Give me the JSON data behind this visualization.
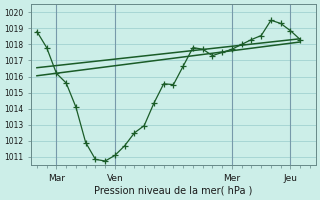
{
  "xlabel": "Pression niveau de la mer( hPa )",
  "background_color": "#cceee8",
  "grid_color": "#99cccc",
  "line_color": "#1a5c28",
  "ylim": [
    1010.5,
    1020.5
  ],
  "y_ticks": [
    1011,
    1012,
    1013,
    1014,
    1015,
    1016,
    1017,
    1018,
    1019,
    1020
  ],
  "series1_x": [
    0.0,
    0.5,
    1.0,
    1.5,
    2.0,
    2.5,
    3.0,
    3.5,
    4.0,
    4.5,
    5.0,
    5.5,
    6.0,
    6.5,
    7.0,
    7.5,
    8.0,
    8.5,
    9.0,
    9.5,
    10.0,
    10.5,
    11.0,
    11.5,
    12.0,
    12.5,
    13.0,
    13.5
  ],
  "series1_y": [
    1018.8,
    1017.8,
    1016.2,
    1015.6,
    1014.1,
    1011.9,
    1010.85,
    1010.75,
    1011.1,
    1011.7,
    1012.5,
    1012.95,
    1014.35,
    1015.55,
    1015.5,
    1016.65,
    1017.8,
    1017.7,
    1017.3,
    1017.5,
    1017.7,
    1018.0,
    1018.3,
    1018.55,
    1019.5,
    1019.3,
    1018.85,
    1018.3
  ],
  "series2_x": [
    0.0,
    13.5
  ],
  "series2_y": [
    1016.05,
    1018.15
  ],
  "series3_x": [
    0.0,
    13.5
  ],
  "series3_y": [
    1016.55,
    1018.35
  ],
  "xlim": [
    -0.3,
    14.3
  ],
  "vline_positions": [
    1.0,
    4.0,
    10.0,
    13.0
  ],
  "x_tick_positions": [
    1.0,
    4.0,
    10.0,
    13.0
  ],
  "x_tick_labels": [
    "Mar",
    "Ven",
    "Mer",
    "Jeu"
  ],
  "marker_size": 4
}
